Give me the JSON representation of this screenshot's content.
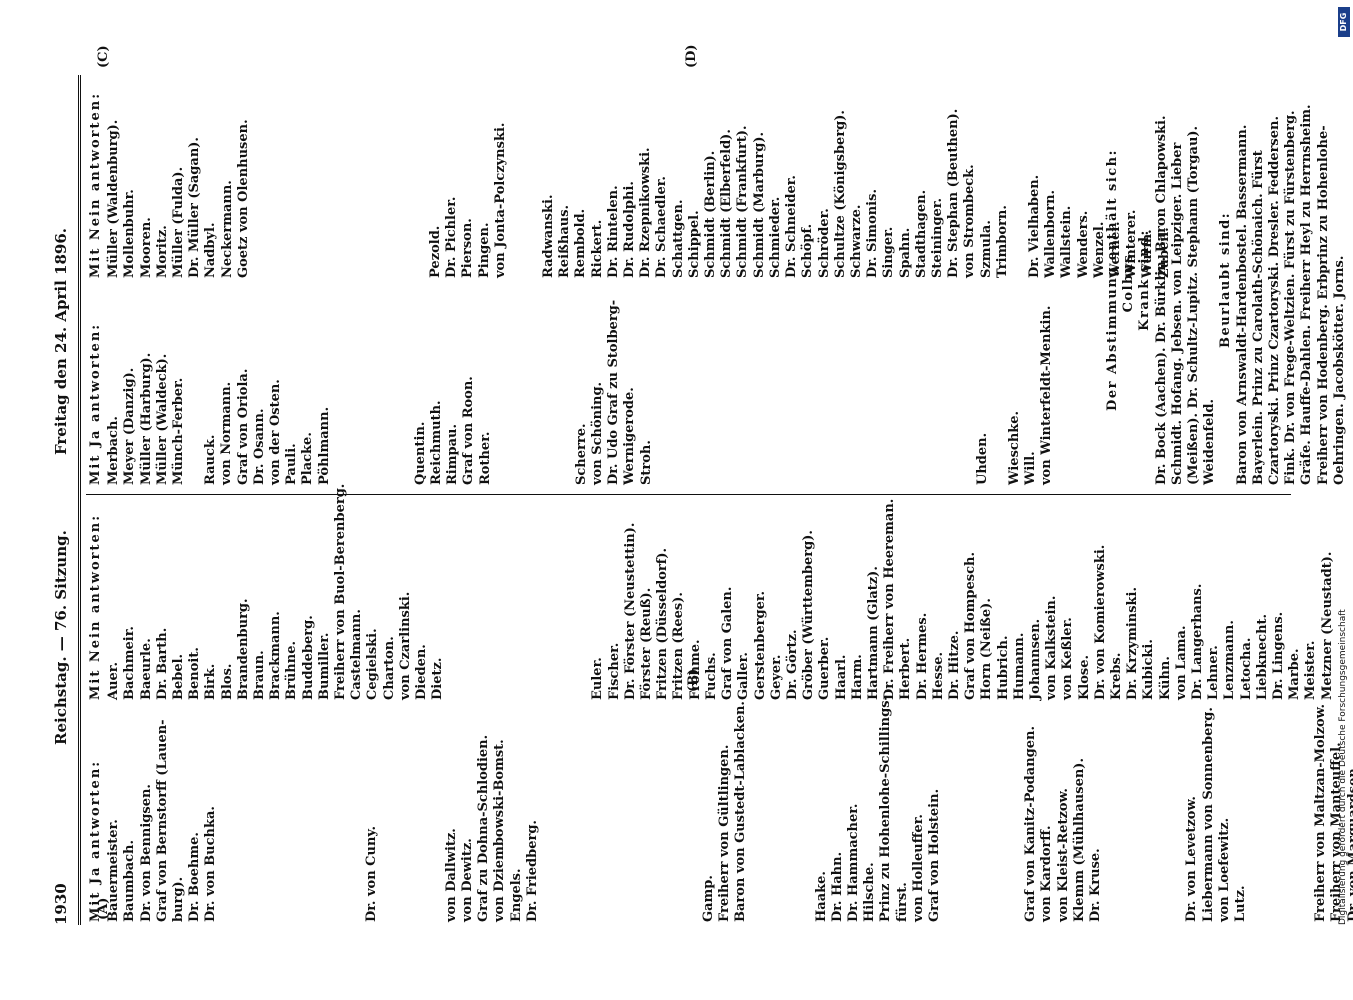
{
  "header": {
    "page_number": "1930",
    "title": "Reichstag. — 76. Sitzung.",
    "date": "Freitag den 24. April 1896."
  },
  "markers": {
    "a": "(A)",
    "b": "(B)",
    "c": "(C)",
    "d": "(D)"
  },
  "columns": [
    {
      "heading": "Mit Ja antworten:",
      "names": [
        "Bauermeister.",
        "Baumbach.",
        "Dr. von Bennigsen.",
        "Graf von Bernstorff (Lauen-",
        "burg).",
        "Dr. Boehme.",
        "Dr. von Buchka.",
        "",
        "",
        "",
        "",
        "",
        "",
        "",
        "",
        "",
        "Dr. von Cuny.",
        "",
        "",
        "",
        "",
        "von Dallwitz.",
        "von Dewitz.",
        "Graf zu Dohna-Schlodien.",
        "von Dziembowski-Bomst.",
        "Engels.",
        "Dr. Friedberg.",
        "",
        "",
        "",
        "",
        "",
        "",
        "",
        "",
        "",
        "",
        "Gamp.",
        "Freiherr von Gültlingen.",
        "Baron von Gustedt-Lablacken.",
        "",
        "",
        "",
        "",
        "Haake.",
        "Dr. Hahn.",
        "Dr. Hammacher.",
        "Hilsche.",
        "Prinz zu Hohenlohe-Schillings-",
        "fürst.",
        "von Holleuffer.",
        "Graf von Holstein.",
        "",
        "",
        "",
        "",
        "",
        "Graf von Kanitz-Podangen.",
        "von Kardorff.",
        "von Kleist-Retzow.",
        "Klemm (Mühlhausen).",
        "Dr. Kruse.",
        "",
        "",
        "",
        "",
        "",
        "Dr. von Levetzow.",
        "Liebermann von Sonnenberg.",
        "von Loefewitz.",
        "Lutz.",
        "",
        "",
        "",
        "",
        "Freiherr von Maltzan-Molzow.",
        "Freiherr von Manteuffel.",
        "Dr. von Marquardsen."
      ]
    },
    {
      "heading": "Mit Nein antworten:",
      "names": [
        "Auer.",
        "Bachmeir.",
        "Baeurle.",
        "Dr. Barth.",
        "Bebel.",
        "Benoit.",
        "Birk.",
        "Blos.",
        "Brandenburg.",
        "Braun.",
        "Brackmann.",
        "Brühne.",
        "Buddeberg.",
        "Bumiller.",
        "Freiherr von Buol-Berenberg.",
        "Castelmann.",
        "Cegielski.",
        "Charton.",
        "von Czarlinski.",
        "Dieden.",
        "Dietz.",
        "",
        "",
        "",
        "",
        "",
        "",
        "",
        "",
        "",
        "Euler.",
        "Fischer.",
        "Dr. Förster (Neustettin).",
        "Förster (Reuß).",
        "Fritzen (Düsseldorf).",
        "Fritzen (Rees).",
        "Frohme.",
        "Fuchs.",
        "Graf von Galen.",
        "Galler.",
        "Gerstenberger.",
        "Geyer.",
        "Dr. Görtz.",
        "Gröber (Württemberg).",
        "Guerber.",
        "Haarl.",
        "Harm.",
        "Hartmann (Glatz).",
        "Dr. Freiherr von Heereman.",
        "Herbert.",
        "Dr. Hermes.",
        "Hesse.",
        "Dr. Hitze.",
        "Graf von Hompesch.",
        "Horn (Neiße).",
        "Hubrich.",
        "Humann.",
        "Johannsen.",
        "von Kalkstein.",
        "von Keßler.",
        "Klose.",
        "Dr. von Komierowski.",
        "Krebs.",
        "Dr. Krzyminski.",
        "Kubicki.",
        "Kühn.",
        "von Lama.",
        "Dr. Langerhans.",
        "Lehner.",
        "Lenzmann.",
        "Letocha.",
        "Liebknecht.",
        "Dr. Lingens.",
        "Marbe.",
        "Meister.",
        "Metzner (Neustadt)."
      ]
    },
    {
      "heading": "Mit Ja antworten:",
      "names": [
        "Merbach.",
        "Meyer (Danzig).",
        "Müller (Harburg).",
        "Müller (Waldeck).",
        "Münch-Ferber.",
        "",
        "Rauck.",
        "von Normann.",
        "Graf von Oriola.",
        "Dr. Osann.",
        "von der Osten.",
        "Pauli.",
        "Placke.",
        "Pöhlmann.",
        "",
        "",
        "",
        "",
        "",
        "Quentin.",
        "Reichmuth.",
        "Rimpau.",
        "Graf von Roon.",
        "Rother.",
        "",
        "",
        "",
        "",
        "",
        "Scherre.",
        "von Schöning.",
        "Dr. Udo Graf zu Stolberg-",
        "Wernigerode.",
        "Stroh.",
        "",
        "",
        "",
        "",
        "",
        "",
        "",
        "",
        "",
        "",
        "",
        "",
        "",
        "",
        "",
        "",
        "",
        "",
        "",
        "",
        "Uhden.",
        "",
        "Wieschke.",
        "Will.",
        "von Winterfeldt-Menkin."
      ]
    },
    {
      "heading": "Mit Nein antworten:",
      "names": [
        "Müller (Waldenburg).",
        "Mollenbuhr.",
        "Mooren.",
        "Moritz.",
        "Müller (Fulda).",
        "Dr. Müller (Sagan).",
        "Nadbyl.",
        "Neckermann.",
        "Goetz von Olenhusen.",
        "",
        "",
        "",
        "",
        "",
        "",
        "",
        "",
        "",
        "",
        "",
        "Pezold.",
        "Dr. Pichler.",
        "Pierson.",
        "Pingen.",
        "von Jonta-Polczynski.",
        "",
        "",
        "Radwanski.",
        "Reißhaus.",
        "Rembold.",
        "Rickert.",
        "Dr. Rintelen.",
        "Dr. Rudolphi.",
        "Dr. Rzepnikowski.",
        "Dr. Schaedler.",
        "Schattgen.",
        "Schippel.",
        "Schmidt (Berlin).",
        "Schmidt (Elberfeld).",
        "Schmidt (Frankfurt).",
        "Schmidt (Marburg).",
        "Schmieder.",
        "Dr. Schneider.",
        "Schöpf.",
        "Schröder.",
        "Schultze (Königsberg).",
        "Schwarze.",
        "Dr. Simonis.",
        "Singer.",
        "Spahn.",
        "Stadthagen.",
        "Steininger.",
        "Dr. Stephan (Beuthen).",
        "von Strombeck.",
        "Szmula.",
        "Trimborn.",
        "",
        "Dr. Vielhaben.",
        "Wallenborn.",
        "Wallstein.",
        "Wenders.",
        "Wenzel.",
        "Werner.",
        "Winterer.",
        "Wurm.",
        "Zubeil."
      ]
    }
  ],
  "stats": {
    "abstain_heading": "Der Abstimmung enthält sich:",
    "abstain_names": "Colbus.",
    "sick_heading": "Krank sind:",
    "sick_names": "Dr. Bock (Aachen). Dr. Bürklin. Baron Chlapowski. Schmidt. Hofang. Jebsen. von Leipziger. Lieber (Meißen). Dr. Schultz-Lupitz. Stephann (Torgau). Weidenfeld.",
    "leave_heading": "Beurlaubt sind:",
    "leave_names": "Baron von Arnswaldt-Hardenbostel. Bassermann. Bayerlein. Prinz zu Carolath-Schönaich. Fürst Czartoryski. Prinz Czartoryski. Dresler. Feddersen. Fink. Dr. von Frege-Weltzien. Fürst zu Fürstenberg. Gräfe. Hauffe-Dahlen. Freiherr Heyl zu Herrnsheim. Freiherr von Hodenberg. Erbprinz zu Hohenlohe-Oehringen. Jacobskötter. Jorns."
  },
  "footer": {
    "credit": "Digitalisierung gefördert durch die Deutsche Forschungsgemeinschaft",
    "logo_text": "DFG"
  }
}
